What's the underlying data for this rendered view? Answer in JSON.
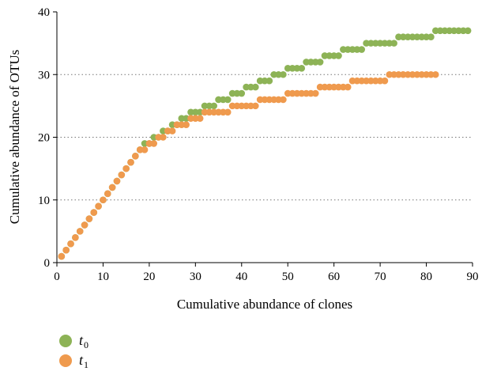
{
  "chart_data": {
    "type": "scatter",
    "xlabel": "Cumulative abundance of clones",
    "ylabel": "Cumulative abundance of OTUs",
    "xlim": [
      0,
      90
    ],
    "ylim": [
      0,
      40
    ],
    "x_ticks": [
      "0",
      "10",
      "20",
      "30",
      "40",
      "50",
      "60",
      "70",
      "80",
      "90"
    ],
    "y_ticks": [
      "0",
      "10",
      "20",
      "30",
      "40"
    ],
    "grid": "horizontal dotted",
    "legend_position": "bottom-left",
    "series": [
      {
        "name": "t",
        "subscript": "0",
        "color": "#8db356",
        "steps": [
          [
            1,
            1
          ],
          [
            2,
            2
          ],
          [
            3,
            3
          ],
          [
            4,
            4
          ],
          [
            5,
            5
          ],
          [
            6,
            6
          ],
          [
            7,
            7
          ],
          [
            8,
            8
          ],
          [
            9,
            9
          ],
          [
            10,
            10
          ],
          [
            11,
            11
          ],
          [
            12,
            12
          ],
          [
            13,
            13
          ],
          [
            14,
            14
          ],
          [
            15,
            15
          ],
          [
            16,
            16
          ],
          [
            17,
            17
          ],
          [
            18,
            18
          ],
          [
            19,
            19
          ],
          [
            20,
            19
          ],
          [
            21,
            20
          ],
          [
            22,
            20
          ],
          [
            23,
            21
          ],
          [
            24,
            21
          ],
          [
            25,
            22
          ],
          [
            26,
            22
          ],
          [
            27,
            23
          ],
          [
            28,
            23
          ],
          [
            29,
            24
          ],
          [
            30,
            24
          ],
          [
            31,
            24
          ],
          [
            32,
            25
          ],
          [
            33,
            25
          ],
          [
            34,
            25
          ],
          [
            35,
            26
          ],
          [
            36,
            26
          ],
          [
            37,
            26
          ],
          [
            38,
            27
          ],
          [
            39,
            27
          ],
          [
            40,
            27
          ],
          [
            41,
            28
          ],
          [
            42,
            28
          ],
          [
            43,
            28
          ],
          [
            44,
            29
          ],
          [
            45,
            29
          ],
          [
            46,
            29
          ],
          [
            47,
            30
          ],
          [
            48,
            30
          ],
          [
            49,
            30
          ],
          [
            50,
            31
          ],
          [
            51,
            31
          ],
          [
            52,
            31
          ],
          [
            53,
            31
          ],
          [
            54,
            32
          ],
          [
            55,
            32
          ],
          [
            56,
            32
          ],
          [
            57,
            32
          ],
          [
            58,
            33
          ],
          [
            59,
            33
          ],
          [
            60,
            33
          ],
          [
            61,
            33
          ],
          [
            62,
            34
          ],
          [
            63,
            34
          ],
          [
            64,
            34
          ],
          [
            65,
            34
          ],
          [
            66,
            34
          ],
          [
            67,
            35
          ],
          [
            68,
            35
          ],
          [
            69,
            35
          ],
          [
            70,
            35
          ],
          [
            71,
            35
          ],
          [
            72,
            35
          ],
          [
            73,
            35
          ],
          [
            74,
            36
          ],
          [
            75,
            36
          ],
          [
            76,
            36
          ],
          [
            77,
            36
          ],
          [
            78,
            36
          ],
          [
            79,
            36
          ],
          [
            80,
            36
          ],
          [
            81,
            36
          ],
          [
            82,
            37
          ],
          [
            83,
            37
          ],
          [
            84,
            37
          ],
          [
            85,
            37
          ],
          [
            86,
            37
          ],
          [
            87,
            37
          ],
          [
            88,
            37
          ],
          [
            89,
            37
          ]
        ]
      },
      {
        "name": "t",
        "subscript": "1",
        "color": "#ef9a4e",
        "steps": [
          [
            1,
            1
          ],
          [
            2,
            2
          ],
          [
            3,
            3
          ],
          [
            4,
            4
          ],
          [
            5,
            5
          ],
          [
            6,
            6
          ],
          [
            7,
            7
          ],
          [
            8,
            8
          ],
          [
            9,
            9
          ],
          [
            10,
            10
          ],
          [
            11,
            11
          ],
          [
            12,
            12
          ],
          [
            13,
            13
          ],
          [
            14,
            14
          ],
          [
            15,
            15
          ],
          [
            16,
            16
          ],
          [
            17,
            17
          ],
          [
            18,
            18
          ],
          [
            19,
            18
          ],
          [
            20,
            19
          ],
          [
            21,
            19
          ],
          [
            22,
            20
          ],
          [
            23,
            20
          ],
          [
            24,
            21
          ],
          [
            25,
            21
          ],
          [
            26,
            22
          ],
          [
            27,
            22
          ],
          [
            28,
            22
          ],
          [
            29,
            23
          ],
          [
            30,
            23
          ],
          [
            31,
            23
          ],
          [
            32,
            24
          ],
          [
            33,
            24
          ],
          [
            34,
            24
          ],
          [
            35,
            24
          ],
          [
            36,
            24
          ],
          [
            37,
            24
          ],
          [
            38,
            25
          ],
          [
            39,
            25
          ],
          [
            40,
            25
          ],
          [
            41,
            25
          ],
          [
            42,
            25
          ],
          [
            43,
            25
          ],
          [
            44,
            26
          ],
          [
            45,
            26
          ],
          [
            46,
            26
          ],
          [
            47,
            26
          ],
          [
            48,
            26
          ],
          [
            49,
            26
          ],
          [
            50,
            27
          ],
          [
            51,
            27
          ],
          [
            52,
            27
          ],
          [
            53,
            27
          ],
          [
            54,
            27
          ],
          [
            55,
            27
          ],
          [
            56,
            27
          ],
          [
            57,
            28
          ],
          [
            58,
            28
          ],
          [
            59,
            28
          ],
          [
            60,
            28
          ],
          [
            61,
            28
          ],
          [
            62,
            28
          ],
          [
            63,
            28
          ],
          [
            64,
            29
          ],
          [
            65,
            29
          ],
          [
            66,
            29
          ],
          [
            67,
            29
          ],
          [
            68,
            29
          ],
          [
            69,
            29
          ],
          [
            70,
            29
          ],
          [
            71,
            29
          ],
          [
            72,
            30
          ],
          [
            73,
            30
          ],
          [
            74,
            30
          ],
          [
            75,
            30
          ],
          [
            76,
            30
          ],
          [
            77,
            30
          ],
          [
            78,
            30
          ],
          [
            79,
            30
          ],
          [
            80,
            30
          ],
          [
            81,
            30
          ],
          [
            82,
            30
          ]
        ]
      }
    ]
  }
}
